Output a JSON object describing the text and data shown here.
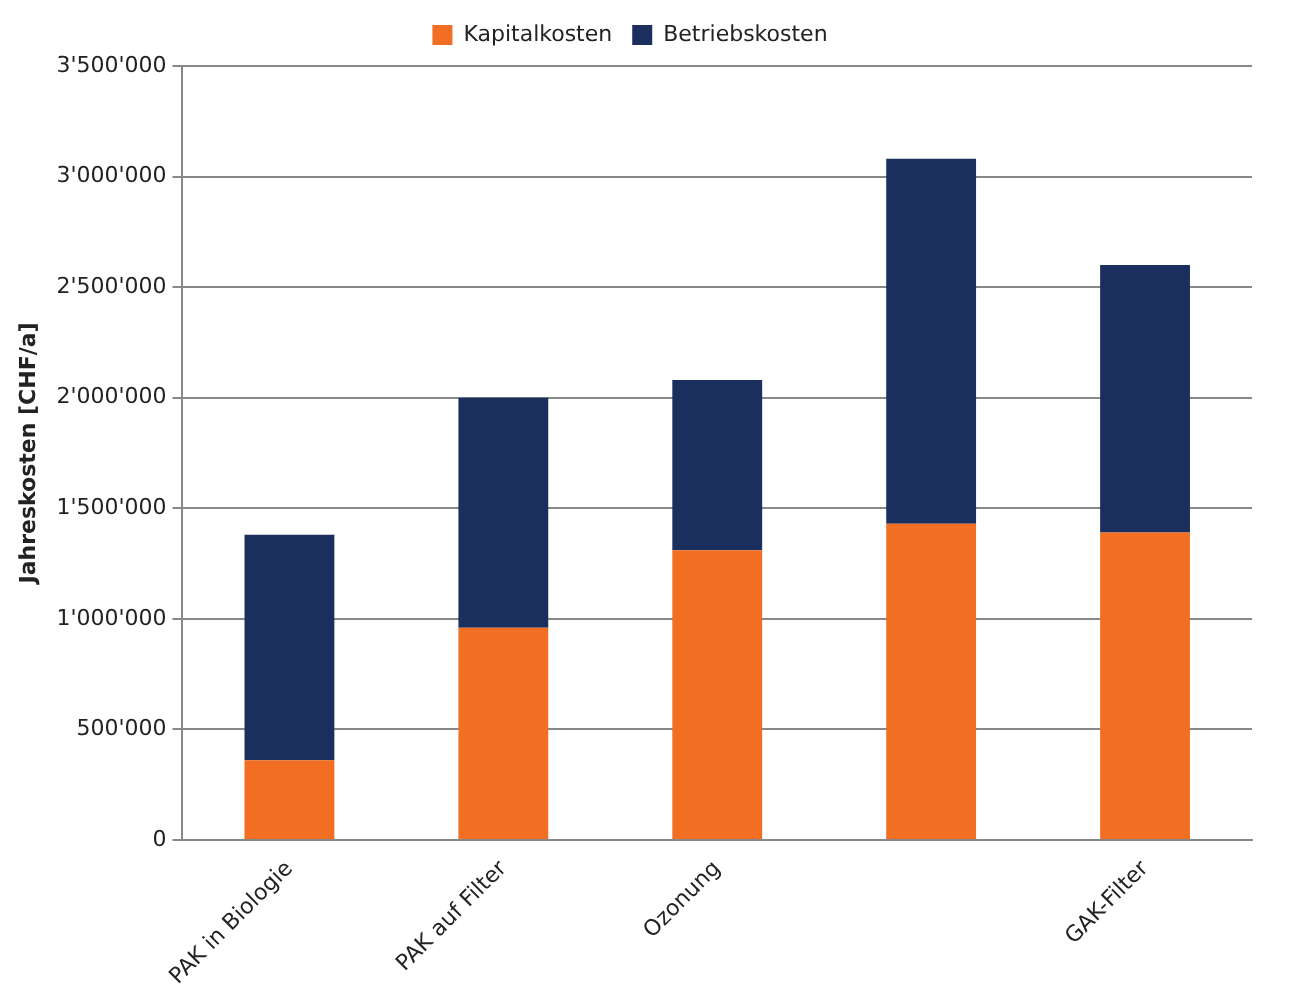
{
  "chart_data": {
    "type": "bar",
    "stacked": true,
    "ylabel": "Jahreskosten [CHF/a]",
    "categories": [
      "PAK in Biologie",
      "PAK auf Filter",
      "Ozonung",
      null,
      "GAK-Filter"
    ],
    "series": [
      {
        "name": "Kapitalkosten",
        "color": "#f26e22",
        "values": [
          360000,
          960000,
          1310000,
          1430000,
          1390000
        ]
      },
      {
        "name": "Betriebskosten",
        "color": "#1b2f5e",
        "values": [
          1020000,
          1040000,
          770000,
          1650000,
          1210000
        ]
      }
    ],
    "ylim": [
      0,
      3500000
    ],
    "yticks": [
      {
        "value": 0,
        "label": "0"
      },
      {
        "value": 500000,
        "label": "500'000"
      },
      {
        "value": 1000000,
        "label": "1'000'000"
      },
      {
        "value": 1500000,
        "label": "1'500'000"
      },
      {
        "value": 2000000,
        "label": "2'000'000"
      },
      {
        "value": 2500000,
        "label": "2'500'000"
      },
      {
        "value": 3000000,
        "label": "3'000'000"
      },
      {
        "value": 3500000,
        "label": "3'500'000"
      }
    ],
    "grid": "y",
    "legend": "top"
  }
}
